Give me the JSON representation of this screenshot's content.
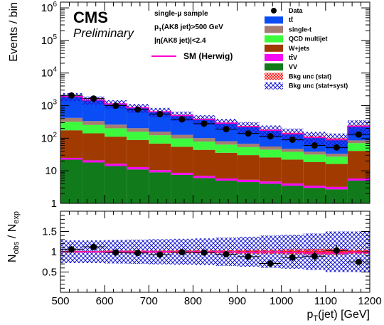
{
  "colors": {
    "ttbar": "#0a4cf5",
    "single_t": "#a67c72",
    "qcd": "#3cfa3c",
    "wjets": "#a03a00",
    "ttv": "#f50af5",
    "vv": "#117a1a",
    "sm_line": "#ff00c8",
    "unc_stat": "#ff1a1a",
    "unc_syst": "#1a1ad6",
    "ratio_line": "#ff0000"
  },
  "chart_data": [
    {
      "type": "bar",
      "stacked": true,
      "title": "",
      "xlabel": "p_T(jet) [GeV]",
      "ylabel": "Events / bin",
      "xlim": [
        500,
        1200
      ],
      "ylim": [
        1,
        1500000
      ],
      "ylog": true,
      "grid": false,
      "legend_position": "top-right",
      "bin_edges": [
        500,
        550,
        600,
        650,
        700,
        750,
        800,
        850,
        900,
        950,
        1000,
        1050,
        1100,
        1150,
        1200
      ],
      "series": [
        {
          "name": "VV",
          "key": "vv",
          "values": [
            22,
            18,
            14,
            11,
            9,
            7.5,
            6,
            5,
            4.5,
            4,
            3.5,
            3,
            2.7,
            5
          ]
        },
        {
          "name": "ttV",
          "key": "ttv",
          "values": [
            3,
            3,
            2.5,
            2,
            1.5,
            1.2,
            1,
            0.8,
            0.8,
            0.7,
            0.6,
            0.5,
            0.5,
            0.8
          ]
        },
        {
          "name": "W+jets",
          "key": "wjets",
          "values": [
            150,
            120,
            95,
            75,
            58,
            46,
            37,
            30,
            25,
            21,
            18,
            15,
            13,
            35
          ]
        },
        {
          "name": "QCD multijet",
          "key": "qcd",
          "values": [
            145,
            115,
            90,
            70,
            55,
            44,
            35,
            28,
            23,
            19,
            16,
            13,
            11,
            30
          ]
        },
        {
          "name": "single-t",
          "key": "single_t",
          "values": [
            100,
            80,
            60,
            45,
            35,
            28,
            22,
            17,
            14,
            11,
            9,
            7,
            6,
            15
          ]
        },
        {
          "name": "tt̄",
          "key": "ttbar",
          "values": [
            1480,
            1150,
            870,
            660,
            490,
            370,
            280,
            210,
            160,
            120,
            92,
            70,
            60,
            150
          ]
        }
      ],
      "data_series": {
        "name": "Data",
        "x": [
          525,
          575,
          625,
          675,
          725,
          775,
          825,
          875,
          925,
          975,
          1025,
          1075,
          1125,
          1175
        ],
        "y": [
          2050,
          1650,
          1000,
          760,
          550,
          380,
          280,
          190,
          140,
          115,
          90,
          60,
          52,
          130
        ]
      },
      "sm_herwig": {
        "name": "SM (Herwig)",
        "values": [
          1900,
          1480,
          1130,
          860,
          650,
          495,
          380,
          290,
          225,
          175,
          137,
          105,
          90,
          232
        ]
      },
      "bkg_unc_stat_label": "Bkg unc (stat)",
      "bkg_unc_syst_label": "Bkg unc (stat+syst)",
      "syst_frac": [
        0.28,
        0.28,
        0.29,
        0.3,
        0.31,
        0.32,
        0.33,
        0.35,
        0.37,
        0.4,
        0.42,
        0.45,
        0.5,
        0.5
      ],
      "stat_frac": [
        0.02,
        0.02,
        0.03,
        0.03,
        0.03,
        0.04,
        0.04,
        0.04,
        0.05,
        0.05,
        0.06,
        0.07,
        0.07,
        0.05
      ],
      "y_tick_labels": [
        {
          "exp": "6",
          "value": 1000000
        },
        {
          "exp": "5",
          "value": 100000
        },
        {
          "exp": "4",
          "value": 10000
        },
        {
          "exp": "3",
          "value": 1000
        },
        {
          "exp": "2",
          "value": 100
        },
        {
          "label": "10",
          "value": 10
        },
        {
          "label": "1",
          "value": 1
        }
      ]
    },
    {
      "type": "scatter",
      "title": "",
      "xlabel": "p_T(jet) [GeV]",
      "ylabel": "N_obs / N_exp",
      "xlim": [
        500,
        1200
      ],
      "ylim": [
        0,
        2
      ],
      "x": [
        525,
        575,
        625,
        675,
        725,
        775,
        825,
        875,
        925,
        975,
        1025,
        1075,
        1125,
        1175
      ],
      "y": [
        1.06,
        1.12,
        0.98,
        0.97,
        0.93,
        0.99,
        0.98,
        0.94,
        0.88,
        0.71,
        0.86,
        0.89,
        1.03,
        0.75
      ],
      "stat_frac": [
        0.02,
        0.02,
        0.03,
        0.03,
        0.03,
        0.04,
        0.04,
        0.04,
        0.05,
        0.05,
        0.06,
        0.07,
        0.07,
        0.05
      ],
      "syst_frac": [
        0.28,
        0.28,
        0.29,
        0.3,
        0.31,
        0.32,
        0.33,
        0.35,
        0.37,
        0.4,
        0.42,
        0.45,
        0.5,
        0.5
      ],
      "x_ticks": [
        "500",
        "600",
        "700",
        "800",
        "900",
        "1000",
        "1100",
        "1200"
      ],
      "y_ticks": [
        "0.5",
        "1",
        "1.5"
      ]
    }
  ],
  "labels": {
    "cms": "CMS",
    "preliminary": "Preliminary",
    "sample": "single-μ sample",
    "cut1": "p_T(AK8 jet)>500 GeV",
    "cut2": "|η(AK8 jet)|<2.4",
    "upper_ylabel": "Events / bin",
    "ratio_ylabel": "N_obs / N_exp",
    "xlabel": "p_T(jet) [GeV]"
  },
  "legend": {
    "data": "Data",
    "ttbar": "tt̄",
    "single_t": "single-t",
    "qcd": "QCD multijet",
    "wjets": "W+jets",
    "ttv": "tt̄V",
    "vv": "VV",
    "unc_stat": "Bkg unc (stat)",
    "unc_syst": "Bkg unc (stat+syst)",
    "sm": "SM (Herwig)"
  }
}
